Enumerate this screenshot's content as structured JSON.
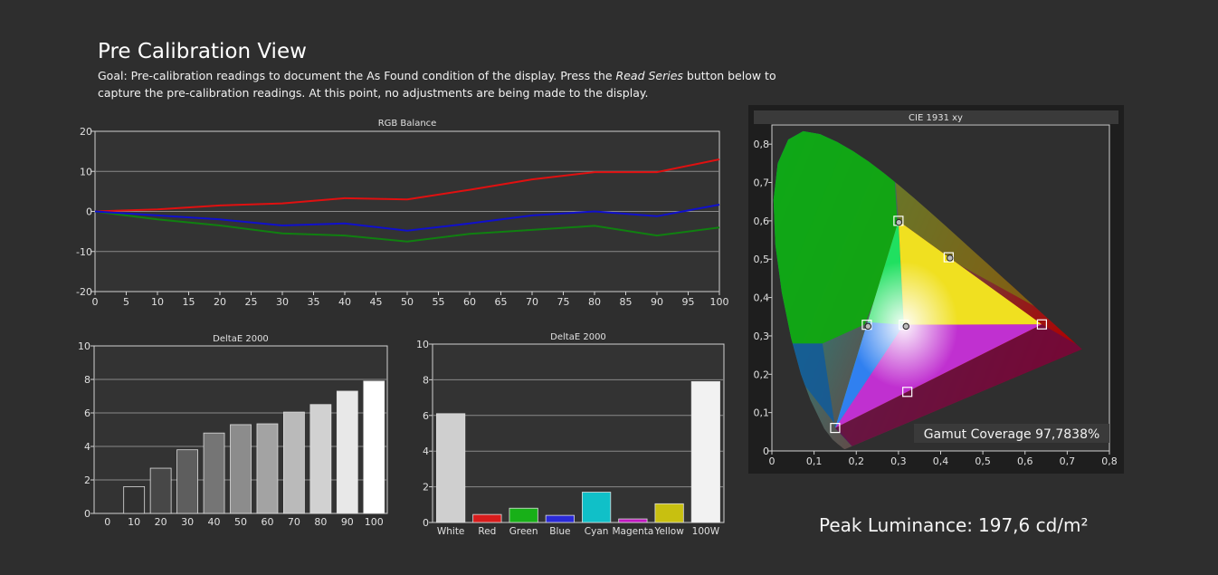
{
  "page": {
    "title": "Pre Calibration View",
    "goal_prefix": "Goal: Pre-calibration readings to document the As Found condition of the display. Press the ",
    "goal_emphasis": "Read Series",
    "goal_suffix": " button below to capture the pre-calibration readings. At this point, no adjustments are being made to the display.",
    "peak_label": "Peak Luminance:",
    "peak_value": "197,6 cd/m²",
    "gamut_label": "Gamut Coverage",
    "gamut_value": "97,7838%"
  },
  "colors": {
    "background": "#2e2e2e",
    "plot_bg": "#333333",
    "red": "#e01010",
    "green": "#108010",
    "blue": "#1010cc"
  },
  "chart_data": [
    {
      "type": "line",
      "title": "RGB Balance",
      "x": [
        0,
        10,
        20,
        30,
        40,
        50,
        60,
        70,
        80,
        90,
        100
      ],
      "xticks": [
        0,
        5,
        10,
        15,
        20,
        25,
        30,
        35,
        40,
        45,
        50,
        55,
        60,
        65,
        70,
        75,
        80,
        85,
        90,
        95,
        100
      ],
      "ylim": [
        -20,
        20
      ],
      "yticks": [
        -20,
        -10,
        0,
        10,
        20
      ],
      "xlim": [
        0,
        100
      ],
      "grid": true,
      "series": [
        {
          "color": "#e01010",
          "values": [
            0,
            0.5,
            1.5,
            2,
            3.3,
            3,
            5.4,
            8,
            9.8,
            9.8,
            13
          ]
        },
        {
          "color": "#108010",
          "values": [
            0,
            -2,
            -3.5,
            -5.5,
            -6,
            -7.5,
            -5.6,
            -4.6,
            -3.6,
            -6,
            -4
          ]
        },
        {
          "color": "#1010cc",
          "values": [
            0,
            -1,
            -2,
            -3.5,
            -3,
            -4.8,
            -3,
            -1,
            0,
            -1.2,
            1.7
          ]
        }
      ]
    },
    {
      "type": "bar",
      "title": "DeltaE 2000",
      "categories": [
        "0",
        "10",
        "20",
        "30",
        "40",
        "50",
        "60",
        "70",
        "80",
        "90",
        "100"
      ],
      "values": [
        0,
        1.6,
        2.7,
        3.8,
        4.8,
        5.3,
        5.35,
        6.05,
        6.5,
        7.3,
        7.9
      ],
      "ylim": [
        0,
        10
      ],
      "yticks": [
        0,
        2,
        4,
        6,
        8,
        10
      ],
      "grid": true
    },
    {
      "type": "bar",
      "title": "DeltaE 2000",
      "categories": [
        "White",
        "Red",
        "Green",
        "Blue",
        "Cyan",
        "Magenta",
        "Yellow",
        "100W"
      ],
      "values": [
        6.1,
        0.45,
        0.8,
        0.4,
        1.7,
        0.2,
        1.05,
        7.9
      ],
      "colors": [
        "#cfcfcf",
        "#d81c1c",
        "#18b018",
        "#2a2ad8",
        "#10c0c8",
        "#c018c0",
        "#c8c010",
        "#f2f2f2"
      ],
      "ylim": [
        0,
        10
      ],
      "yticks": [
        0,
        2,
        4,
        6,
        8,
        10
      ],
      "grid": true
    },
    {
      "type": "scatter",
      "title": "CIE 1931 xy",
      "xlim": [
        0,
        0.8
      ],
      "ylim": [
        0,
        0.85
      ],
      "xticks": [
        "0",
        "0,1",
        "0,2",
        "0,3",
        "0,4",
        "0,5",
        "0,6",
        "0,7",
        "0,8"
      ],
      "yticks": [
        "0",
        "0,1",
        "0,2",
        "0,3",
        "0,4",
        "0,5",
        "0,6",
        "0,7",
        "0,8"
      ],
      "grid": false,
      "targets": [
        {
          "name": "Red",
          "x": 0.64,
          "y": 0.33
        },
        {
          "name": "Green",
          "x": 0.3,
          "y": 0.6
        },
        {
          "name": "Blue",
          "x": 0.15,
          "y": 0.06
        },
        {
          "name": "Cyan",
          "x": 0.225,
          "y": 0.329
        },
        {
          "name": "Magenta",
          "x": 0.321,
          "y": 0.154
        },
        {
          "name": "Yellow",
          "x": 0.419,
          "y": 0.505
        },
        {
          "name": "White",
          "x": 0.3127,
          "y": 0.329
        }
      ],
      "measured": [
        {
          "name": "Green",
          "x": 0.301,
          "y": 0.596
        },
        {
          "name": "Cyan",
          "x": 0.228,
          "y": 0.325
        },
        {
          "name": "Yellow",
          "x": 0.422,
          "y": 0.503
        },
        {
          "name": "White",
          "x": 0.318,
          "y": 0.325
        }
      ]
    }
  ]
}
